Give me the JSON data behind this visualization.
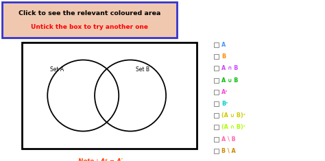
{
  "title_line1": "Click to see the relevant coloured area",
  "title_line2": "Untick the box to try another one",
  "title_bg": "#f0c8b0",
  "title_border": "#3333cc",
  "title_line1_color": "#000000",
  "title_line2_color": "#ff0000",
  "venn_box_color": "#000000",
  "set_a_label": "Set A",
  "set_b_label": "Set B",
  "note_text": "Note : Aᶜ = A′",
  "note_color": "#ff4500",
  "legend_items": [
    {
      "label": "A",
      "color": "#4499ff"
    },
    {
      "label": "B",
      "color": "#ff8800"
    },
    {
      "label": "A ∩ B",
      "color": "#cc44ff"
    },
    {
      "label": "A ∪ B",
      "color": "#00bb00"
    },
    {
      "label": "Aᶜ",
      "color": "#ff44cc"
    },
    {
      "label": "Bᶜ",
      "color": "#00cccc"
    },
    {
      "label": "(A ∪ B)ᶜ",
      "color": "#cccc00"
    },
    {
      "label": "(A ∩ B)ᶜ",
      "color": "#aaff00"
    },
    {
      "label": "A \\ B",
      "color": "#ff66aa"
    },
    {
      "label": "B \\ A",
      "color": "#cc8800"
    }
  ],
  "background_color": "#ffffff"
}
